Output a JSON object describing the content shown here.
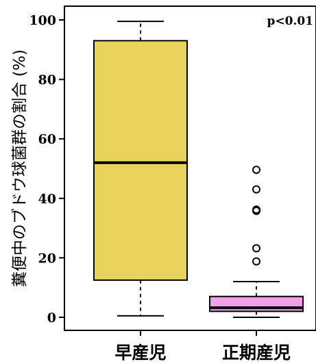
{
  "chart_data": {
    "type": "boxplot",
    "ylabel": "糞便中のブドウ球菌群の割合 (%)",
    "annotation": "p<0.01",
    "ylim": [
      0,
      100
    ],
    "yticks": [
      "0",
      "20",
      "40",
      "60",
      "80",
      "100"
    ],
    "ytick_values": [
      0,
      20,
      40,
      60,
      80,
      100
    ],
    "grid": false,
    "legend": "none",
    "boxes": [
      {
        "category": "早産児",
        "whisker_low": 0.5,
        "q1": 12.5,
        "median": 52,
        "q3": 93,
        "whisker_high": 99.5,
        "outliers": [],
        "color": "#e8d45c"
      },
      {
        "category": "正期産児",
        "whisker_low": 0,
        "q1": 2,
        "median": 3.2,
        "q3": 7,
        "whisker_high": 12,
        "outliers": [
          18.8,
          23.2,
          35.8,
          36.2,
          43,
          49.6
        ],
        "color": "#eea0e8"
      }
    ]
  }
}
